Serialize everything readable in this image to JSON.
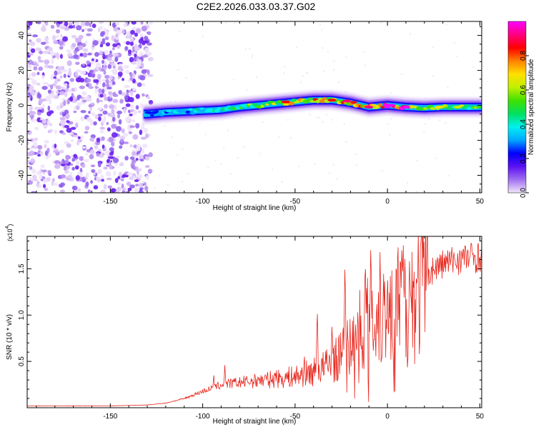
{
  "title": "C2E2.2026.033.03.37.G02",
  "chart_data": [
    {
      "type": "heatmap",
      "xlabel": "Height of straight line (km)",
      "ylabel": "Frequency (Hz)",
      "xlim": [
        -195,
        51
      ],
      "ylim": [
        -50,
        48
      ],
      "xticks": [
        -150,
        -100,
        -50,
        0,
        50
      ],
      "yticks": [
        -40,
        -20,
        0,
        20,
        40
      ],
      "colorbar": {
        "label": "Normalized spectral amplitude",
        "range": [
          0,
          1
        ],
        "ticks": [
          "0.0",
          "0.2",
          "0.4",
          "0.6",
          "0.8"
        ],
        "tick_values": [
          0.0,
          0.2,
          0.4,
          0.6,
          0.8
        ],
        "colors": [
          "#f2e6fb",
          "#a070f0",
          "#5a10f0",
          "#0000ff",
          "#00a8ff",
          "#00f0f0",
          "#00e060",
          "#40e000",
          "#c0f000",
          "#ffe000",
          "#ff8000",
          "#ff0000",
          "#ff0080",
          "#ff00ff"
        ]
      },
      "ridge": {
        "x": [
          -130,
          -120,
          -110,
          -100,
          -90,
          -80,
          -70,
          -60,
          -50,
          -40,
          -30,
          -20,
          -10,
          0,
          10,
          20,
          30,
          40,
          50
        ],
        "y": [
          -5,
          -4,
          -3.5,
          -3,
          -2.5,
          -1,
          0,
          1,
          2,
          3,
          3,
          1.5,
          -1,
          0,
          -1,
          -1.5,
          -1,
          -1,
          -1
        ],
        "amplitude": [
          0.25,
          0.35,
          0.4,
          0.45,
          0.5,
          0.55,
          0.6,
          0.65,
          0.7,
          0.75,
          0.75,
          0.8,
          0.9,
          0.95,
          0.9,
          0.7,
          0.6,
          0.6,
          0.6
        ]
      },
      "noise_region": {
        "x_from": -195,
        "x_to": -128
      }
    },
    {
      "type": "line",
      "xlabel": "Height of straight line (km)",
      "ylabel": "SNR (10 * v/v)",
      "y_multiplier_label": "(x10",
      "y_multiplier_exp": "4",
      "xlim": [
        -195,
        51
      ],
      "ylim": [
        0,
        1.85
      ],
      "xticks": [
        -150,
        -100,
        -50,
        0,
        50
      ],
      "yticks": [
        0.5,
        1.0,
        1.5
      ],
      "ytick_labels": [
        "0.5",
        "1.0",
        "1.5"
      ],
      "series": [
        {
          "color": "#e8281e",
          "envelope_x": [
            -195,
            -150,
            -130,
            -120,
            -110,
            -100,
            -90,
            -80,
            -70,
            -60,
            -50,
            -40,
            -30,
            -25,
            -20,
            -15,
            -10,
            -5,
            0,
            5,
            10,
            15,
            20,
            30,
            40,
            51
          ],
          "envelope_y": [
            0.02,
            0.02,
            0.03,
            0.05,
            0.1,
            0.18,
            0.25,
            0.28,
            0.3,
            0.32,
            0.35,
            0.4,
            0.5,
            0.6,
            0.7,
            0.9,
            1.0,
            1.05,
            1.1,
            1.15,
            1.2,
            1.3,
            1.45,
            1.57,
            1.63,
            1.65
          ],
          "spikes": [
            {
              "x": -94,
              "y": 0.38
            },
            {
              "x": -88,
              "y": 0.48
            },
            {
              "x": -70,
              "y": 0.38
            },
            {
              "x": -60,
              "y": 0.42
            },
            {
              "x": -45,
              "y": 0.6
            },
            {
              "x": -38,
              "y": 1.1
            },
            {
              "x": -30,
              "y": 0.95
            },
            {
              "x": -23,
              "y": 1.62
            },
            {
              "x": -16,
              "y": 1.12
            },
            {
              "x": -12,
              "y": 1.7
            },
            {
              "x": -9,
              "y": 1.85
            },
            {
              "x": -4,
              "y": 1.75
            },
            {
              "x": 0,
              "y": 1.42
            },
            {
              "x": 4,
              "y": 1.2
            },
            {
              "x": 8,
              "y": 1.55
            },
            {
              "x": 12,
              "y": 1.72
            },
            {
              "x": 16,
              "y": 1.3
            }
          ]
        }
      ]
    }
  ]
}
